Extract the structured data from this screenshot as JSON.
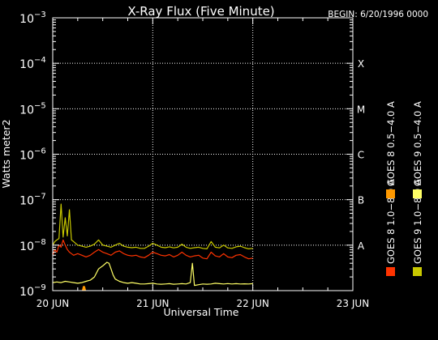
{
  "chart_data": {
    "type": "line",
    "title": "X-Ray Flux (Five Minute)",
    "begin_label": "BEGIN: 6/20/1996 0000",
    "ylabel": "Watts meter2",
    "xlabel": "Universal Time",
    "y_scale": "log",
    "ylim": [
      1e-09,
      0.001
    ],
    "y_ticks": [
      {
        "base": "10",
        "exp": "−9",
        "value": 1e-09
      },
      {
        "base": "10",
        "exp": "−8",
        "value": 1e-08
      },
      {
        "base": "10",
        "exp": "−7",
        "value": 1e-07
      },
      {
        "base": "10",
        "exp": "−6",
        "value": 1e-06
      },
      {
        "base": "10",
        "exp": "−5",
        "value": 1e-05
      },
      {
        "base": "10",
        "exp": "−4",
        "value": 0.0001
      },
      {
        "base": "10",
        "exp": "−3",
        "value": 0.001
      }
    ],
    "xlim": [
      0,
      72
    ],
    "x_unit": "hours since 20 JUN 1996 0000 UT",
    "x_ticks": [
      {
        "label": "20 JUN",
        "value": 0
      },
      {
        "label": "21 JUN",
        "value": 24
      },
      {
        "label": "22 JUN",
        "value": 48
      },
      {
        "label": "23 JUN",
        "value": 72
      }
    ],
    "flare_classes": [
      {
        "label": "A",
        "value": 1e-08
      },
      {
        "label": "B",
        "value": 1e-07
      },
      {
        "label": "C",
        "value": 1e-06
      },
      {
        "label": "M",
        "value": 1e-05
      },
      {
        "label": "X",
        "value": 0.0001
      }
    ],
    "grid": true,
    "legend_placement": "right, vertical",
    "series": [
      {
        "name": "GOES 8 1.0−8.0 A",
        "color": "#ff3300",
        "x": [
          0,
          0.5,
          1,
          1.5,
          2,
          2.5,
          3,
          3.5,
          4,
          4.5,
          5,
          6,
          7,
          8,
          9,
          10,
          11,
          12,
          13,
          14,
          15,
          16,
          17,
          18,
          19,
          20,
          21,
          22,
          23,
          24,
          25,
          26,
          27,
          28,
          29,
          30,
          31,
          32,
          33,
          34,
          35,
          36,
          37,
          38,
          39,
          40,
          41,
          42,
          43,
          44,
          45,
          46,
          47,
          48
        ],
        "y": [
          6e-09,
          8e-09,
          7e-09,
          1e-08,
          9e-09,
          1.3e-08,
          1e-08,
          8e-09,
          7e-09,
          6.5e-09,
          6e-09,
          6.5e-09,
          6e-09,
          5.5e-09,
          6e-09,
          7e-09,
          8e-09,
          7e-09,
          6.5e-09,
          6e-09,
          7e-09,
          7.5e-09,
          6.5e-09,
          6e-09,
          5.8e-09,
          6e-09,
          5.5e-09,
          5.3e-09,
          6e-09,
          7e-09,
          6.5e-09,
          6e-09,
          5.8e-09,
          6.2e-09,
          5.5e-09,
          6e-09,
          7e-09,
          6e-09,
          5.5e-09,
          5.8e-09,
          6e-09,
          5.2e-09,
          5e-09,
          7e-09,
          5.8e-09,
          5.5e-09,
          6.5e-09,
          5.5e-09,
          5.3e-09,
          6e-09,
          6.2e-09,
          5.5e-09,
          5e-09,
          5.2e-09
        ]
      },
      {
        "name": "GOES 9 1.0−8.0 A",
        "color": "#c8c800",
        "x": [
          0,
          0.5,
          1,
          1.5,
          2,
          2.5,
          3,
          3.5,
          4,
          4.5,
          5,
          6,
          7,
          8,
          9,
          10,
          11,
          12,
          13,
          14,
          15,
          16,
          17,
          18,
          19,
          20,
          21,
          22,
          23,
          24,
          25,
          26,
          27,
          28,
          29,
          30,
          31,
          32,
          33,
          34,
          35,
          36,
          37,
          38,
          39,
          40,
          41,
          42,
          43,
          44,
          45,
          46,
          47,
          48
        ],
        "y": [
          1e-08,
          1.2e-08,
          1.3e-08,
          1.4e-08,
          8e-08,
          1.5e-08,
          4e-08,
          1.6e-08,
          6e-08,
          1.3e-08,
          1.2e-08,
          1e-08,
          9.5e-09,
          9e-09,
          9.5e-09,
          1.05e-08,
          1.3e-08,
          1e-08,
          9.5e-09,
          9e-09,
          1e-08,
          1.1e-08,
          9.5e-09,
          9e-09,
          8.8e-09,
          9e-09,
          8.5e-09,
          8.5e-09,
          9.5e-09,
          1.1e-08,
          1e-08,
          9e-09,
          8.8e-09,
          9.2e-09,
          8.7e-09,
          9e-09,
          1.05e-08,
          9e-09,
          8.5e-09,
          8.8e-09,
          9e-09,
          8.5e-09,
          8.3e-09,
          1.2e-08,
          9e-09,
          8.7e-09,
          1e-08,
          8.7e-09,
          8.5e-09,
          9.2e-09,
          9.5e-09,
          8.8e-09,
          8.3e-09,
          8.5e-09
        ]
      },
      {
        "name": "GOES 8 0.5−4.0 A",
        "color": "#ff9900",
        "x": [
          7.3,
          7.5,
          7.7
        ],
        "y": [
          1e-09,
          1.2e-09,
          1e-09
        ]
      },
      {
        "name": "GOES 9 0.5−4.0 A",
        "color": "#ffff66",
        "x": [
          0,
          1,
          2,
          3,
          4,
          5,
          6,
          7,
          8,
          9,
          10,
          11,
          12,
          13,
          13.5,
          14,
          14.5,
          15,
          16,
          17,
          18,
          19,
          20,
          21,
          22,
          23,
          24,
          25,
          26,
          27,
          28,
          29,
          30,
          31,
          32,
          33,
          33.5,
          34,
          35,
          36,
          37,
          38,
          39,
          40,
          41,
          42,
          43,
          44,
          45,
          46,
          47,
          48
        ],
        "y": [
          1.5e-09,
          1.55e-09,
          1.5e-09,
          1.6e-09,
          1.55e-09,
          1.5e-09,
          1.45e-09,
          1.5e-09,
          1.6e-09,
          1.7e-09,
          2e-09,
          3e-09,
          3.5e-09,
          4.2e-09,
          4e-09,
          3e-09,
          2.2e-09,
          1.8e-09,
          1.6e-09,
          1.5e-09,
          1.45e-09,
          1.5e-09,
          1.45e-09,
          1.4e-09,
          1.4e-09,
          1.42e-09,
          1.45e-09,
          1.4e-09,
          1.38e-09,
          1.4e-09,
          1.42e-09,
          1.38e-09,
          1.4e-09,
          1.42e-09,
          1.4e-09,
          1.5e-09,
          4e-09,
          1.3e-09,
          1.35e-09,
          1.4e-09,
          1.38e-09,
          1.4e-09,
          1.45e-09,
          1.42e-09,
          1.4e-09,
          1.43e-09,
          1.4e-09,
          1.42e-09,
          1.4e-09,
          1.41e-09,
          1.4e-09,
          1.42e-09
        ]
      }
    ]
  }
}
